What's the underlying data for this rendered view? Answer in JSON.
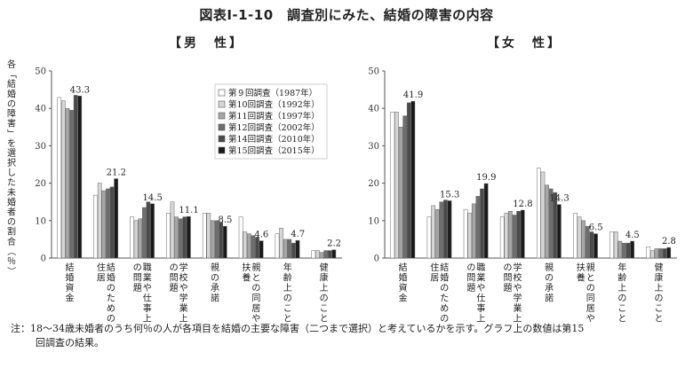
{
  "figure_title": "図表Ⅰ-1-10　調査別にみた、結婚の障害の内容",
  "footnote": [
    "注：18～34歳未婚者のうち何％の人が各項目を結婚の主要な障害（二つまで選択）と考えているかを示す。グラフ上の数値は第15",
    "回調査の結果。"
  ],
  "colors": {
    "series": [
      "#ffffff",
      "#d6d6d6",
      "#a6a6a6",
      "#6e6e6e",
      "#4a4a4a",
      "#1a1a1a"
    ],
    "axis": "#555555"
  },
  "chart_data": [
    {
      "type": "bar",
      "title": "【男　性】",
      "ylabel": "各「結婚の障害」を選択した未婚者の割合（％）",
      "ylim": [
        0,
        50
      ],
      "yticks": [
        "0",
        "10",
        "20",
        "30",
        "40",
        "50"
      ],
      "grid": false,
      "legend_position": "top-right",
      "categories": [
        "結婚資金",
        "結婚のための住居",
        "職業や仕事上の問題",
        "学校や学業上の問題",
        "親の承諾",
        "親との同居や扶養",
        "年齢上のこと",
        "健康上のこと"
      ],
      "series": [
        {
          "name": "第９回調査（1987年）",
          "values": [
            42.9,
            16.8,
            11.0,
            12.0,
            12.0,
            11.0,
            6.5,
            2.0
          ]
        },
        {
          "name": "第10回調査（1992年）",
          "values": [
            42.0,
            20.0,
            10.0,
            15.0,
            12.0,
            7.0,
            8.0,
            2.0
          ]
        },
        {
          "name": "第11回調査（1997年）",
          "values": [
            40.0,
            18.0,
            10.5,
            11.0,
            10.0,
            6.5,
            5.0,
            1.5
          ]
        },
        {
          "name": "第12回調査（2002年）",
          "values": [
            39.5,
            18.5,
            13.5,
            10.5,
            10.0,
            6.0,
            5.0,
            2.0
          ]
        },
        {
          "name": "第14回調査（2010年）",
          "values": [
            43.5,
            19.0,
            15.0,
            11.0,
            9.5,
            5.5,
            4.0,
            2.0
          ]
        },
        {
          "name": "第15回調査（2015年）",
          "values": [
            43.3,
            21.2,
            14.5,
            11.1,
            8.5,
            4.6,
            4.7,
            2.2
          ]
        }
      ],
      "value_labels": [
        "43.3",
        "21.2",
        "14.5",
        "11.1",
        "8.5",
        "4.6",
        "4.7",
        "2.2"
      ]
    },
    {
      "type": "bar",
      "title": "【女　性】",
      "ylabel": "",
      "ylim": [
        0,
        50
      ],
      "yticks": [
        "0",
        "10",
        "20",
        "30",
        "40",
        "50"
      ],
      "grid": false,
      "categories": [
        "結婚資金",
        "結婚のための住居",
        "職業や仕事上の問題",
        "学校や学業上の問題",
        "親の承諾",
        "親との同居や扶養",
        "年齢上のこと",
        "健康上のこと"
      ],
      "series": [
        {
          "name": "第９回調査（1987年）",
          "values": [
            39.0,
            11.0,
            13.0,
            11.0,
            24.0,
            12.0,
            7.0,
            3.0
          ]
        },
        {
          "name": "第10回調査（1992年）",
          "values": [
            39.0,
            14.0,
            12.0,
            12.0,
            23.0,
            11.0,
            7.0,
            2.0
          ]
        },
        {
          "name": "第11回調査（1997年）",
          "values": [
            35.0,
            13.0,
            14.5,
            12.5,
            19.5,
            10.0,
            4.5,
            2.5
          ]
        },
        {
          "name": "第12回調査（2002年）",
          "values": [
            38.0,
            15.0,
            16.5,
            11.5,
            18.5,
            8.5,
            4.0,
            2.5
          ]
        },
        {
          "name": "第14回調査（2010年）",
          "values": [
            41.5,
            15.5,
            18.5,
            12.5,
            17.5,
            7.0,
            4.0,
            2.5
          ]
        },
        {
          "name": "第15回調査（2015年）",
          "values": [
            41.9,
            15.3,
            19.9,
            12.8,
            14.3,
            6.5,
            4.5,
            2.8
          ]
        }
      ],
      "value_labels": [
        "41.9",
        "15.3",
        "19.9",
        "12.8",
        "14.3",
        "6.5",
        "4.5",
        "2.8"
      ]
    }
  ]
}
